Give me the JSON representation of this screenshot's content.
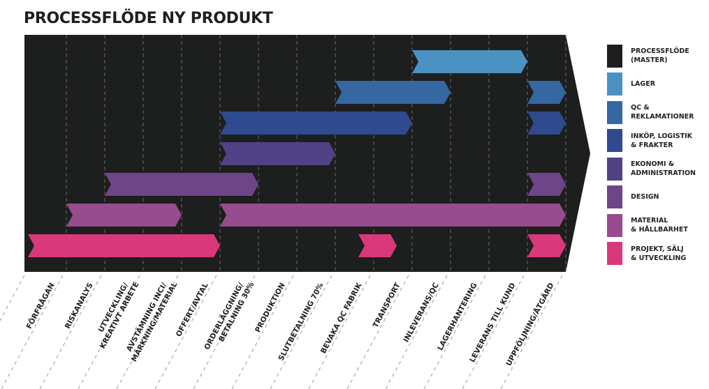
{
  "title": "PROCESSFLÖDE NY PRODUKT",
  "colors": {
    "master": "#1d1e1e",
    "lager": "#4b92c3",
    "qc": "#3567a3",
    "inkop": "#2f4a8e",
    "ekonomi": "#514285",
    "design": "#6f4589",
    "material": "#974c8d",
    "projekt": "#d9387a"
  },
  "legend": [
    {
      "key": "master",
      "label": "PROCESSFLÖDE\n(MASTER)"
    },
    {
      "key": "lager",
      "label": "LAGER"
    },
    {
      "key": "qc",
      "label": "QC &\nREKLAMATIONER"
    },
    {
      "key": "inkop",
      "label": "INKÖP, LOGISTIK\n& FRAKTER"
    },
    {
      "key": "ekonomi",
      "label": "EKONOMI &\nADMINISTRATION"
    },
    {
      "key": "design",
      "label": "DESIGN"
    },
    {
      "key": "material",
      "label": "MATERIAL\n& HÅLLBARHET"
    },
    {
      "key": "projekt",
      "label": "PROJEKT, SÄLJ\n& UTVECKLING"
    }
  ],
  "steps": [
    [
      "FÖRFRÅGAN"
    ],
    [
      "RISKANALYS"
    ],
    [
      "UTVECKLING/",
      "KREATIVT ARBETE"
    ],
    [
      "AVSTÄMNING INCI/",
      "MÄRKNING/MATERIAL"
    ],
    [
      "OFFERT/AVTAL"
    ],
    [
      "ORDERLÄGGNING/",
      "BETALNING 30%"
    ],
    [
      "PRODUKTION"
    ],
    [
      "SLUTBETALNING 70%"
    ],
    [
      "BEVAKA QC FABRIK"
    ],
    [
      "TRANSPORT"
    ],
    [
      "INLEVERANS/QC"
    ],
    [
      "LAGERHANTERING"
    ],
    [
      "LEVERANS TILL KUND"
    ],
    [
      "UPPFÖLJNING/ÅTGÄRD"
    ]
  ],
  "rows": [
    {
      "key": "lager",
      "bars": [
        [
          10,
          13
        ]
      ]
    },
    {
      "key": "qc",
      "bars": [
        [
          8,
          11
        ],
        [
          13,
          14
        ]
      ]
    },
    {
      "key": "inkop",
      "bars": [
        [
          5,
          10
        ],
        [
          13,
          14
        ]
      ]
    },
    {
      "key": "ekonomi",
      "bars": [
        [
          5,
          8
        ]
      ]
    },
    {
      "key": "design",
      "bars": [
        [
          2,
          6
        ],
        [
          13,
          14
        ]
      ]
    },
    {
      "key": "material",
      "bars": [
        [
          1,
          4
        ],
        [
          5,
          14
        ]
      ]
    },
    {
      "key": "projekt",
      "bars": [
        [
          0,
          5
        ],
        [
          8.6,
          9.6
        ],
        [
          13,
          14
        ]
      ]
    }
  ]
}
